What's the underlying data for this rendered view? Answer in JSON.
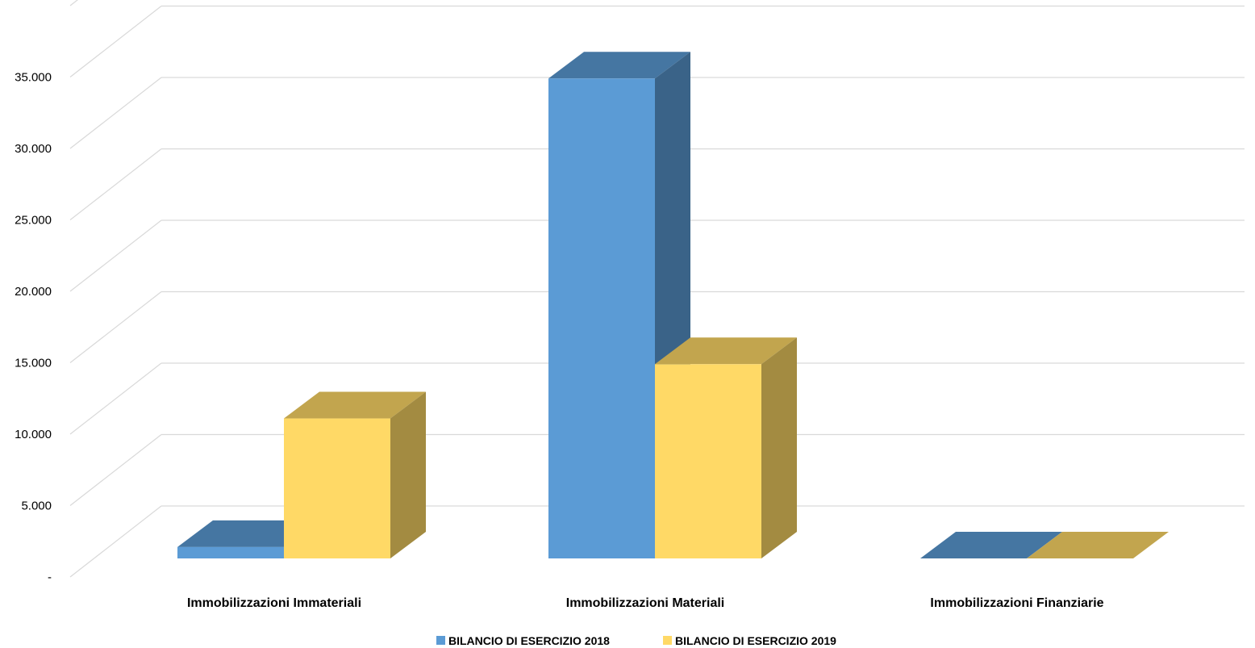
{
  "chart_data": {
    "type": "bar",
    "three_d": true,
    "title": "",
    "xlabel": "",
    "ylabel": "",
    "categories": [
      "Immobilizzazioni Immateriali",
      "Immobilizzazioni Materiali",
      "Immobilizzazioni Finanziarie"
    ],
    "series": [
      {
        "name": "BILANCIO DI ESERCIZIO 2018",
        "values": [
          800,
          33600,
          0
        ],
        "color": "#5b9bd5"
      },
      {
        "name": "BILANCIO DI ESERCIZIO 2019",
        "values": [
          9800,
          13600,
          0
        ],
        "color": "#ffd966"
      }
    ],
    "ylim": [
      0,
      35000
    ],
    "y_ticks": [
      0,
      5000,
      10000,
      15000,
      20000,
      25000,
      30000,
      35000
    ],
    "y_tick_labels": [
      "-",
      "5.000",
      "10.000",
      "15.000",
      "20.000",
      "25.000",
      "30.000",
      "35.000"
    ],
    "grid": true,
    "legend_position": "bottom"
  }
}
